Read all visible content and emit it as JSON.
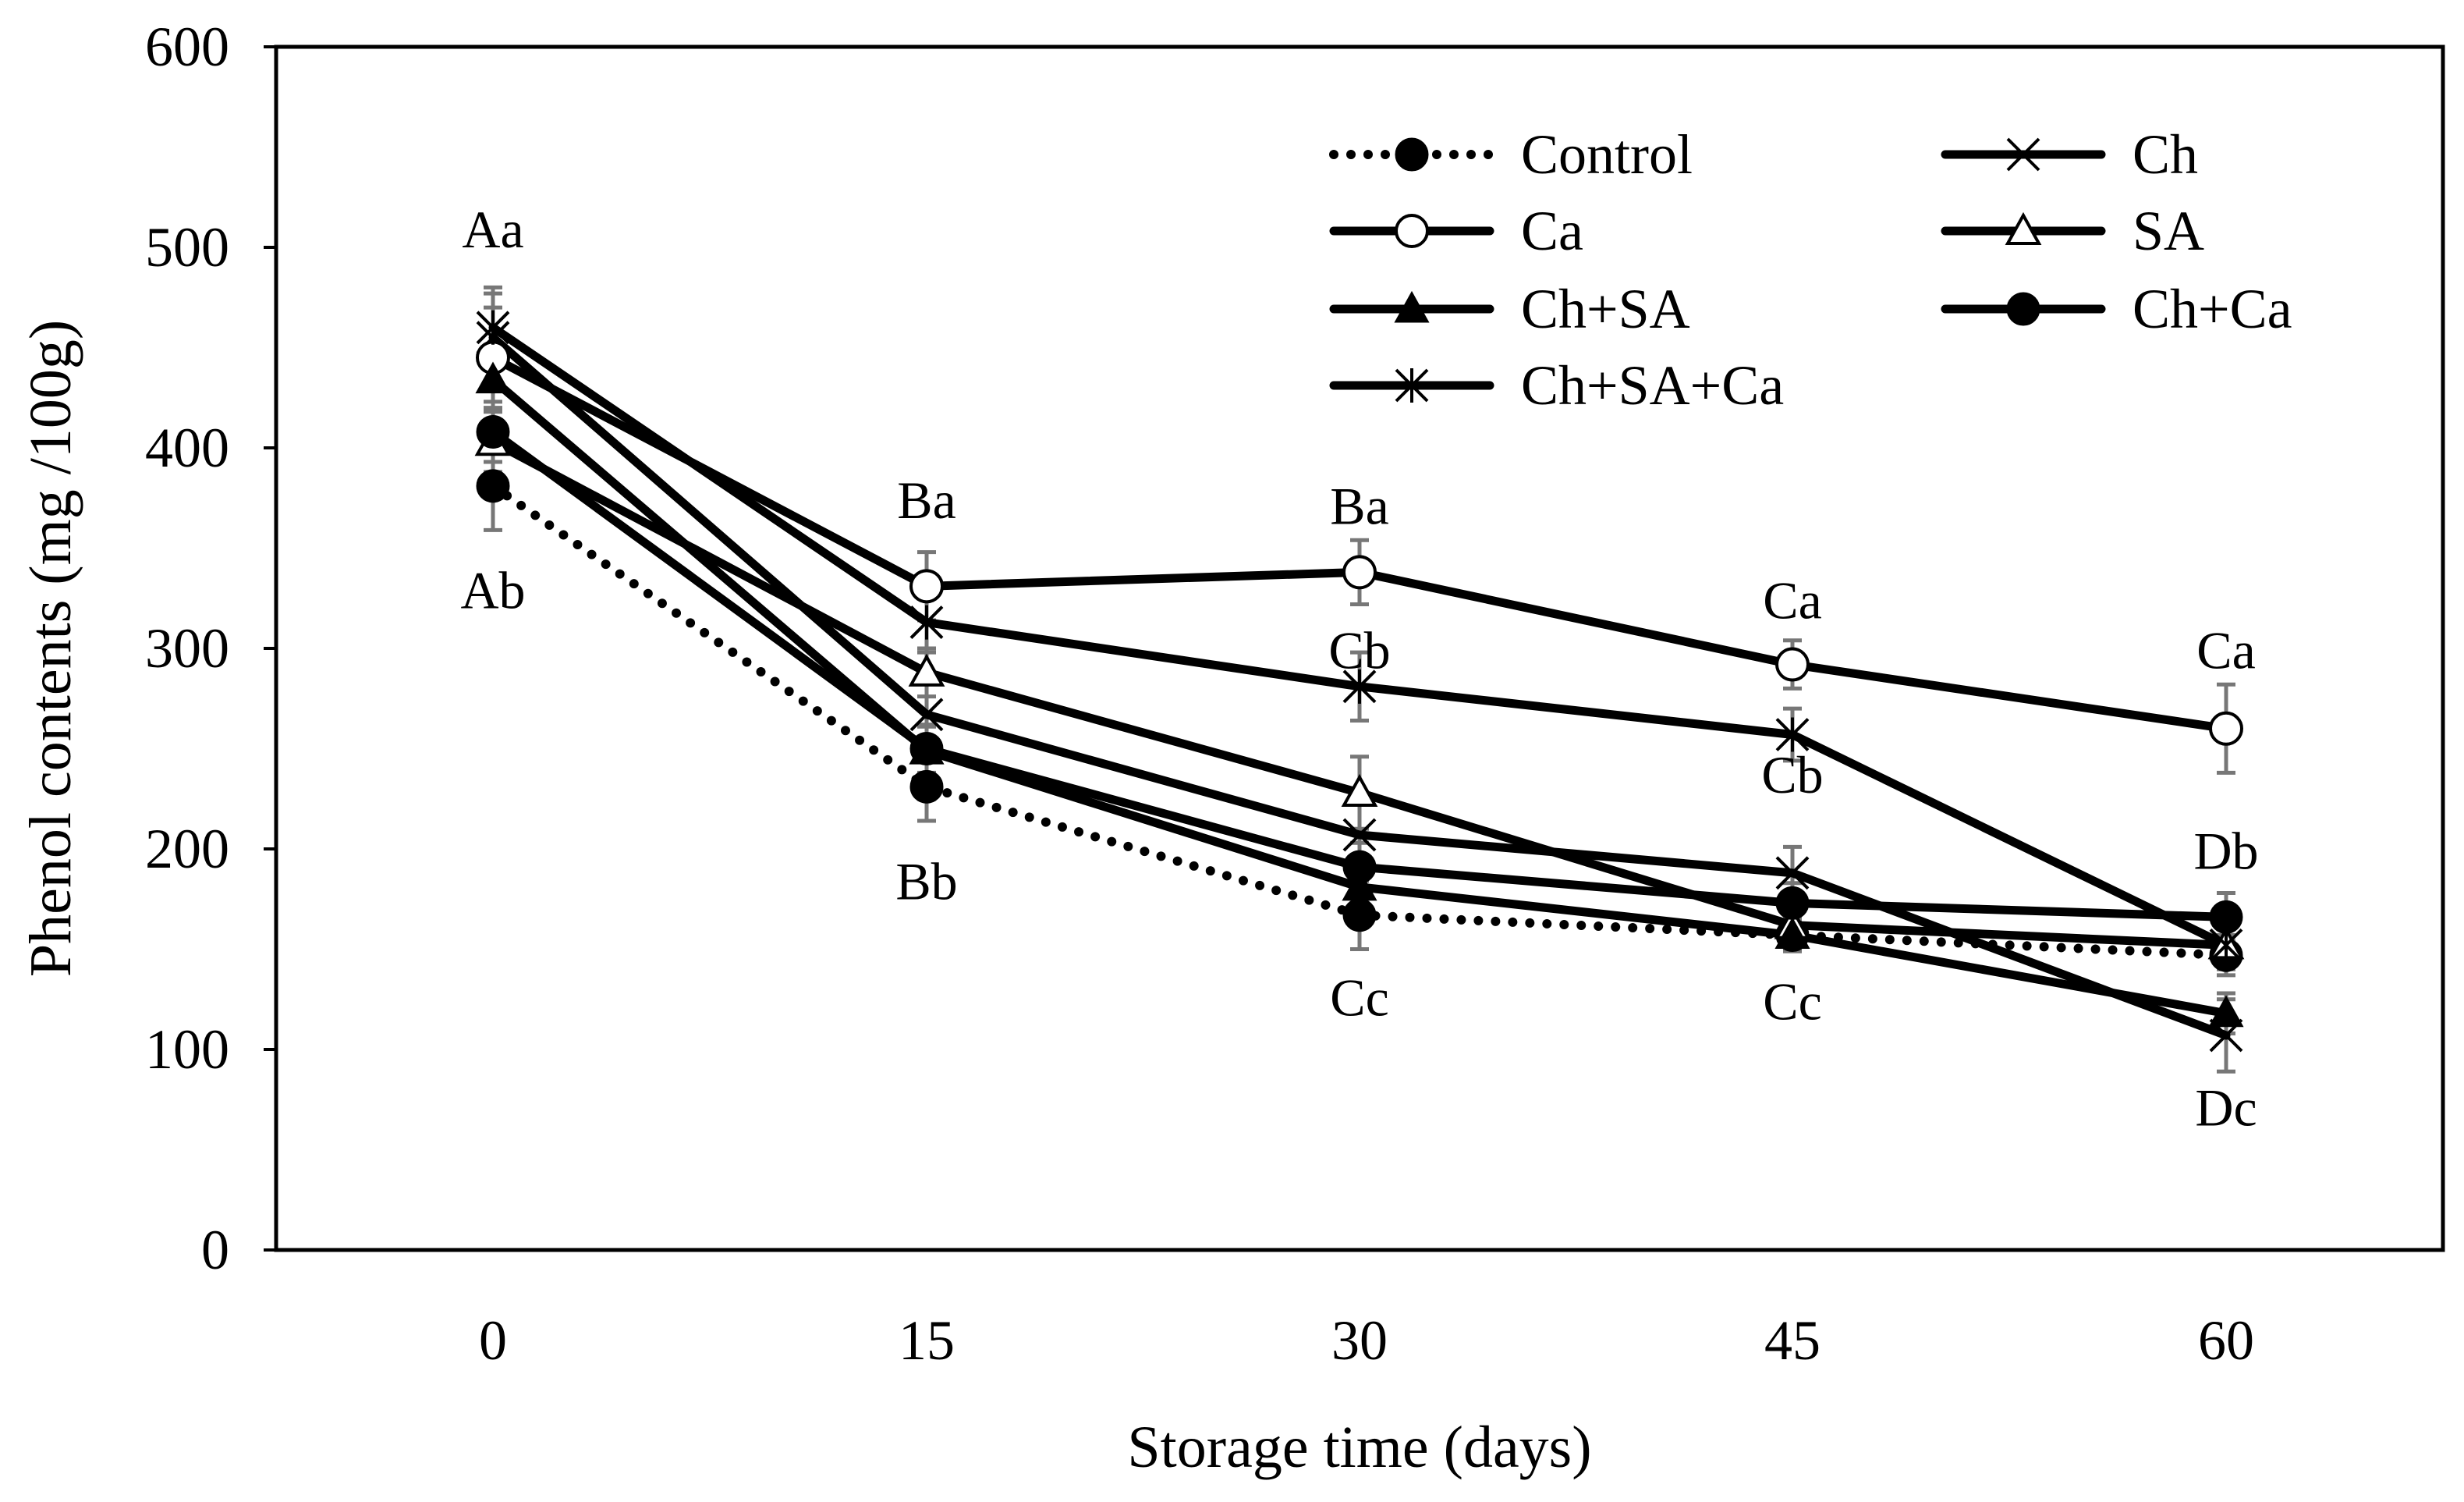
{
  "chart_data": {
    "type": "line",
    "title": "",
    "xlabel": "Storage time (days)",
    "ylabel": "Phenol contents (mg /100g)",
    "x": [
      0,
      15,
      30,
      45,
      60
    ],
    "x_tick_labels": [
      "0",
      "15",
      "30",
      "45",
      "60"
    ],
    "ylim": [
      0,
      600
    ],
    "y_ticks": [
      0,
      100,
      200,
      300,
      400,
      500,
      600
    ],
    "y_tick_labels": [
      "0",
      "100",
      "200",
      "300",
      "400",
      "500",
      "600"
    ],
    "grid": false,
    "legend_position": "top-right",
    "series": [
      {
        "name": "Control",
        "marker": "filled-circle",
        "line": "dotted",
        "color": "#000000",
        "values": [
          381,
          231,
          167,
          157,
          147
        ],
        "errors": [
          22,
          17,
          17,
          8,
          10
        ]
      },
      {
        "name": "Ch",
        "marker": "x",
        "line": "solid",
        "color": "#000000",
        "values": [
          455,
          267,
          207,
          188,
          107
        ],
        "errors": [
          22,
          17,
          15,
          13,
          18
        ]
      },
      {
        "name": "Ca",
        "marker": "open-circle",
        "line": "solid",
        "color": "#000000",
        "values": [
          445,
          331,
          338,
          292,
          260
        ],
        "errors": [
          25,
          17,
          16,
          12,
          22
        ]
      },
      {
        "name": "SA",
        "marker": "open-triangle",
        "line": "solid",
        "color": "#000000",
        "values": [
          403,
          288,
          228,
          162,
          152
        ],
        "errors": [
          15,
          12,
          18,
          8,
          10
        ]
      },
      {
        "name": "Ch+SA",
        "marker": "filled-triangle",
        "line": "solid",
        "color": "#000000",
        "values": [
          434,
          249,
          181,
          157,
          118
        ],
        "errors": [
          15,
          12,
          12,
          8,
          10
        ]
      },
      {
        "name": "Ch+Ca",
        "marker": "filled-circle",
        "line": "solid",
        "color": "#000000",
        "values": [
          408,
          250,
          191,
          173,
          166
        ],
        "errors": [
          15,
          12,
          12,
          10,
          12
        ]
      },
      {
        "name": "Ch+SA+Ca",
        "marker": "asterisk",
        "line": "solid",
        "color": "#000000",
        "values": [
          460,
          313,
          281,
          257,
          152
        ],
        "errors": [
          20,
          15,
          17,
          13,
          12
        ]
      }
    ],
    "annotations": [
      {
        "text": "Aa",
        "x": 0,
        "y": 500
      },
      {
        "text": "Ab",
        "x": 0,
        "y": 320
      },
      {
        "text": "Ba",
        "x": 15,
        "y": 365
      },
      {
        "text": "Bb",
        "x": 15,
        "y": 175
      },
      {
        "text": "Ba",
        "x": 30,
        "y": 362
      },
      {
        "text": "Cb",
        "x": 30,
        "y": 290
      },
      {
        "text": "Cc",
        "x": 30,
        "y": 117
      },
      {
        "text": "Ca",
        "x": 45,
        "y": 315
      },
      {
        "text": "Cb",
        "x": 45,
        "y": 228
      },
      {
        "text": "Cc",
        "x": 45,
        "y": 115
      },
      {
        "text": "Ca",
        "x": 60,
        "y": 290
      },
      {
        "text": "Db",
        "x": 60,
        "y": 190
      },
      {
        "text": "Dc",
        "x": 60,
        "y": 62
      }
    ]
  }
}
